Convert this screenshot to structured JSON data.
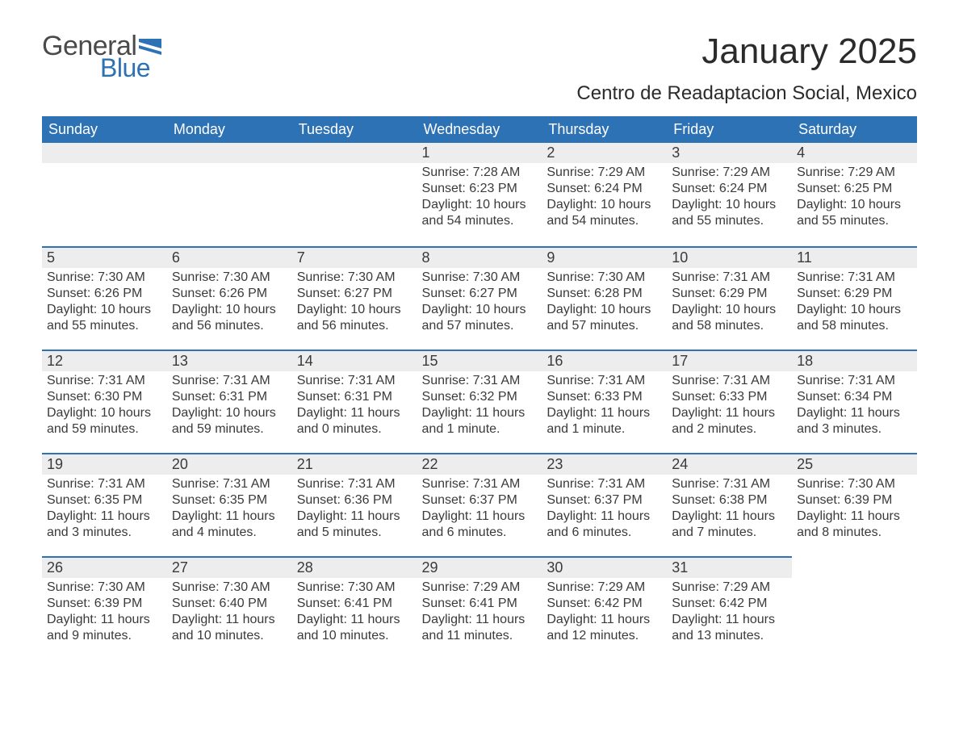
{
  "logo": {
    "general": "General",
    "blue": "Blue",
    "flag_color": "#2e72b6"
  },
  "title": "January 2025",
  "location": "Centro de Readaptacion Social, Mexico",
  "colors": {
    "header_bg": "#2e72b6",
    "header_text": "#ffffff",
    "daynum_bg": "#ededed",
    "border_top": "#2e72b6",
    "text": "#3a3a3a",
    "page_bg": "#ffffff"
  },
  "typography": {
    "title_fontsize": 44,
    "location_fontsize": 24,
    "header_fontsize": 18,
    "daynum_fontsize": 18,
    "body_fontsize": 16,
    "font_family": "Arial"
  },
  "days_header": [
    "Sunday",
    "Monday",
    "Tuesday",
    "Wednesday",
    "Thursday",
    "Friday",
    "Saturday"
  ],
  "weeks": [
    [
      null,
      null,
      null,
      {
        "n": "1",
        "sunrise": "7:28 AM",
        "sunset": "6:23 PM",
        "daylight": "10 hours and 54 minutes."
      },
      {
        "n": "2",
        "sunrise": "7:29 AM",
        "sunset": "6:24 PM",
        "daylight": "10 hours and 54 minutes."
      },
      {
        "n": "3",
        "sunrise": "7:29 AM",
        "sunset": "6:24 PM",
        "daylight": "10 hours and 55 minutes."
      },
      {
        "n": "4",
        "sunrise": "7:29 AM",
        "sunset": "6:25 PM",
        "daylight": "10 hours and 55 minutes."
      }
    ],
    [
      {
        "n": "5",
        "sunrise": "7:30 AM",
        "sunset": "6:26 PM",
        "daylight": "10 hours and 55 minutes."
      },
      {
        "n": "6",
        "sunrise": "7:30 AM",
        "sunset": "6:26 PM",
        "daylight": "10 hours and 56 minutes."
      },
      {
        "n": "7",
        "sunrise": "7:30 AM",
        "sunset": "6:27 PM",
        "daylight": "10 hours and 56 minutes."
      },
      {
        "n": "8",
        "sunrise": "7:30 AM",
        "sunset": "6:27 PM",
        "daylight": "10 hours and 57 minutes."
      },
      {
        "n": "9",
        "sunrise": "7:30 AM",
        "sunset": "6:28 PM",
        "daylight": "10 hours and 57 minutes."
      },
      {
        "n": "10",
        "sunrise": "7:31 AM",
        "sunset": "6:29 PM",
        "daylight": "10 hours and 58 minutes."
      },
      {
        "n": "11",
        "sunrise": "7:31 AM",
        "sunset": "6:29 PM",
        "daylight": "10 hours and 58 minutes."
      }
    ],
    [
      {
        "n": "12",
        "sunrise": "7:31 AM",
        "sunset": "6:30 PM",
        "daylight": "10 hours and 59 minutes."
      },
      {
        "n": "13",
        "sunrise": "7:31 AM",
        "sunset": "6:31 PM",
        "daylight": "10 hours and 59 minutes."
      },
      {
        "n": "14",
        "sunrise": "7:31 AM",
        "sunset": "6:31 PM",
        "daylight": "11 hours and 0 minutes."
      },
      {
        "n": "15",
        "sunrise": "7:31 AM",
        "sunset": "6:32 PM",
        "daylight": "11 hours and 1 minute."
      },
      {
        "n": "16",
        "sunrise": "7:31 AM",
        "sunset": "6:33 PM",
        "daylight": "11 hours and 1 minute."
      },
      {
        "n": "17",
        "sunrise": "7:31 AM",
        "sunset": "6:33 PM",
        "daylight": "11 hours and 2 minutes."
      },
      {
        "n": "18",
        "sunrise": "7:31 AM",
        "sunset": "6:34 PM",
        "daylight": "11 hours and 3 minutes."
      }
    ],
    [
      {
        "n": "19",
        "sunrise": "7:31 AM",
        "sunset": "6:35 PM",
        "daylight": "11 hours and 3 minutes."
      },
      {
        "n": "20",
        "sunrise": "7:31 AM",
        "sunset": "6:35 PM",
        "daylight": "11 hours and 4 minutes."
      },
      {
        "n": "21",
        "sunrise": "7:31 AM",
        "sunset": "6:36 PM",
        "daylight": "11 hours and 5 minutes."
      },
      {
        "n": "22",
        "sunrise": "7:31 AM",
        "sunset": "6:37 PM",
        "daylight": "11 hours and 6 minutes."
      },
      {
        "n": "23",
        "sunrise": "7:31 AM",
        "sunset": "6:37 PM",
        "daylight": "11 hours and 6 minutes."
      },
      {
        "n": "24",
        "sunrise": "7:31 AM",
        "sunset": "6:38 PM",
        "daylight": "11 hours and 7 minutes."
      },
      {
        "n": "25",
        "sunrise": "7:30 AM",
        "sunset": "6:39 PM",
        "daylight": "11 hours and 8 minutes."
      }
    ],
    [
      {
        "n": "26",
        "sunrise": "7:30 AM",
        "sunset": "6:39 PM",
        "daylight": "11 hours and 9 minutes."
      },
      {
        "n": "27",
        "sunrise": "7:30 AM",
        "sunset": "6:40 PM",
        "daylight": "11 hours and 10 minutes."
      },
      {
        "n": "28",
        "sunrise": "7:30 AM",
        "sunset": "6:41 PM",
        "daylight": "11 hours and 10 minutes."
      },
      {
        "n": "29",
        "sunrise": "7:29 AM",
        "sunset": "6:41 PM",
        "daylight": "11 hours and 11 minutes."
      },
      {
        "n": "30",
        "sunrise": "7:29 AM",
        "sunset": "6:42 PM",
        "daylight": "11 hours and 12 minutes."
      },
      {
        "n": "31",
        "sunrise": "7:29 AM",
        "sunset": "6:42 PM",
        "daylight": "11 hours and 13 minutes."
      },
      null
    ]
  ],
  "labels": {
    "sunrise": "Sunrise: ",
    "sunset": "Sunset: ",
    "daylight": "Daylight: "
  }
}
